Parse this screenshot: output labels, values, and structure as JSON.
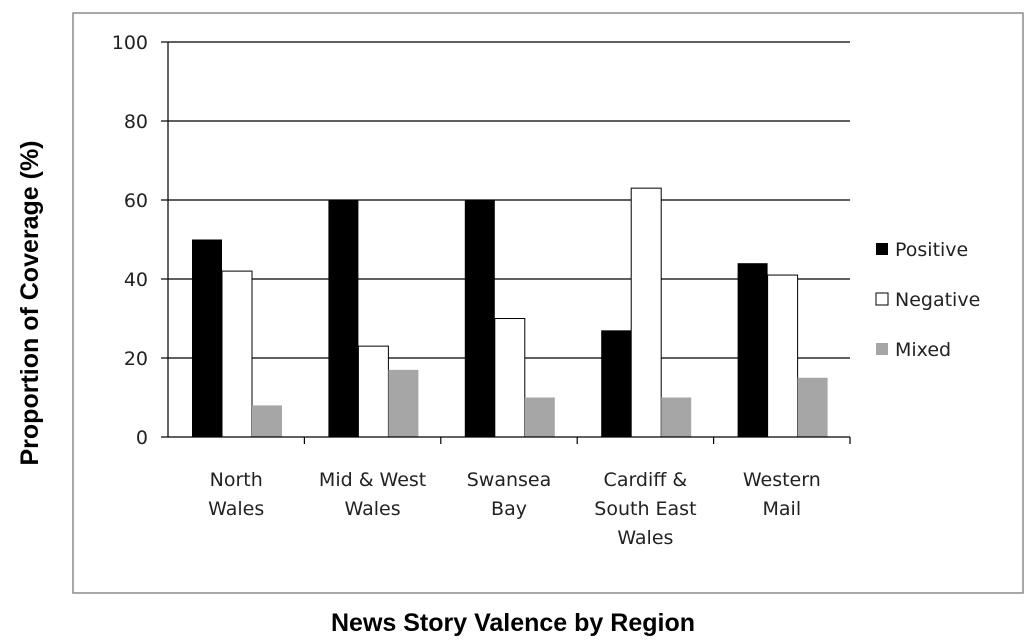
{
  "chart_data": {
    "type": "bar",
    "xlabel": "News Story Valence by Region",
    "ylabel": "Proportion of Coverage (%)",
    "ylim": [
      0,
      100
    ],
    "yticks": [
      0,
      20,
      40,
      60,
      80,
      100
    ],
    "grid": true,
    "legend_position": "right",
    "categories": [
      [
        "North",
        "Wales"
      ],
      [
        "Mid & West",
        "Wales"
      ],
      [
        "Swansea",
        "Bay"
      ],
      [
        "Cardiff &",
        "South East",
        "Wales"
      ],
      [
        "Western",
        "Mail"
      ]
    ],
    "series": [
      {
        "name": "Positive",
        "color": "#000000",
        "values": [
          50,
          60,
          60,
          27,
          44
        ]
      },
      {
        "name": "Negative",
        "color": "#ffffff",
        "values": [
          42,
          23,
          30,
          63,
          41
        ]
      },
      {
        "name": "Mixed",
        "color": "#a6a6a6",
        "values": [
          8,
          17,
          10,
          10,
          15
        ]
      }
    ]
  }
}
